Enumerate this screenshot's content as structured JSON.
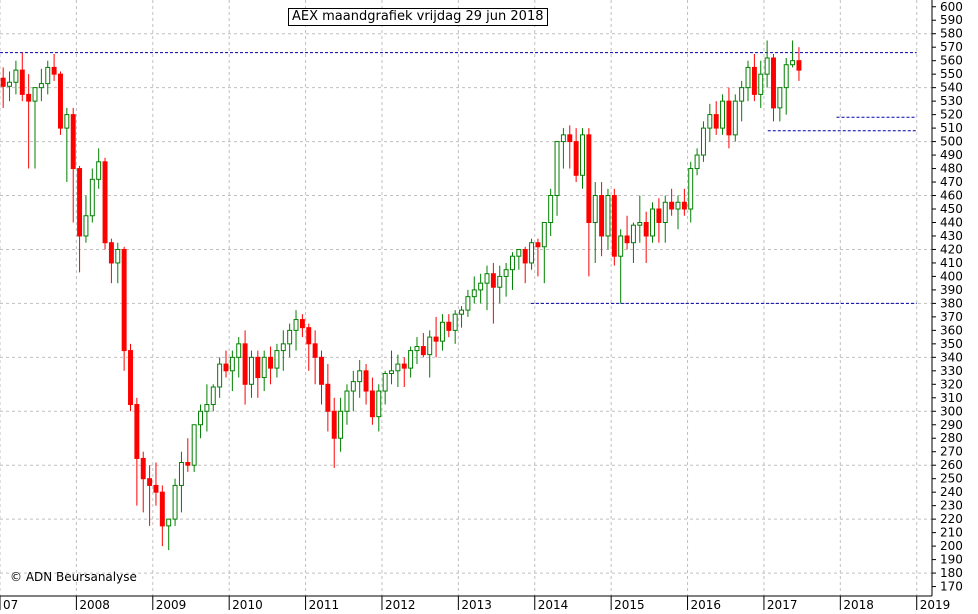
{
  "chart_data": {
    "type": "candlestick",
    "title": "AEX maandgrafiek vrijdag 29 jun 2018",
    "credit": "© ADN Beursanalyse",
    "ylim": [
      163,
      605
    ],
    "grid": true,
    "y_ticks": [
      170,
      180,
      190,
      200,
      210,
      220,
      230,
      240,
      250,
      260,
      270,
      280,
      290,
      300,
      310,
      320,
      330,
      340,
      350,
      360,
      370,
      380,
      390,
      400,
      410,
      420,
      430,
      440,
      450,
      460,
      470,
      480,
      490,
      500,
      510,
      520,
      530,
      540,
      550,
      560,
      570,
      580,
      590,
      600
    ],
    "x_labels": [
      {
        "label": "07",
        "x": 2007.0
      },
      {
        "label": "2008",
        "x": 2008.0
      },
      {
        "label": "2009",
        "x": 2009.0
      },
      {
        "label": "2010",
        "x": 2010.0
      },
      {
        "label": "2011",
        "x": 2011.0
      },
      {
        "label": "2012",
        "x": 2012.0
      },
      {
        "label": "2013",
        "x": 2013.0
      },
      {
        "label": "2014",
        "x": 2014.0
      },
      {
        "label": "2015",
        "x": 2015.0
      },
      {
        "label": "2016",
        "x": 2016.0
      },
      {
        "label": "2017",
        "x": 2017.0
      },
      {
        "label": "2018",
        "x": 2018.0
      },
      {
        "label": "2019",
        "x": 2019.0
      }
    ],
    "colors": {
      "up": "#008000",
      "down": "#ff0000",
      "reference": "#0000aa",
      "grid": "#c0c0c0"
    },
    "reference_lines": [
      {
        "y": 566,
        "x0": 2007.0,
        "x1": 2019.0
      },
      {
        "y": 518,
        "x0": 2017.95,
        "x1": 2019.0
      },
      {
        "y": 508,
        "x0": 2017.05,
        "x1": 2019.0
      },
      {
        "y": 380,
        "x0": 2013.95,
        "x1": 2019.0
      }
    ],
    "candles": [
      [
        547,
        555,
        525,
        541
      ],
      [
        541,
        552,
        530,
        544
      ],
      [
        544,
        560,
        535,
        553
      ],
      [
        553,
        566,
        530,
        535
      ],
      [
        535,
        550,
        480,
        530
      ],
      [
        530,
        540,
        480,
        540
      ],
      [
        540,
        554,
        530,
        543
      ],
      [
        543,
        560,
        535,
        555
      ],
      [
        555,
        565,
        545,
        550
      ],
      [
        550,
        552,
        505,
        510
      ],
      [
        510,
        525,
        470,
        520
      ],
      [
        520,
        525,
        440,
        480
      ],
      [
        480,
        482,
        403,
        430
      ],
      [
        430,
        460,
        425,
        445
      ],
      [
        445,
        480,
        440,
        472
      ],
      [
        472,
        495,
        465,
        485
      ],
      [
        485,
        488,
        420,
        425
      ],
      [
        425,
        428,
        395,
        410
      ],
      [
        410,
        425,
        395,
        420
      ],
      [
        420,
        422,
        330,
        345
      ],
      [
        345,
        350,
        300,
        305
      ],
      [
        305,
        310,
        230,
        265
      ],
      [
        265,
        270,
        225,
        250
      ],
      [
        250,
        260,
        215,
        245
      ],
      [
        245,
        262,
        230,
        240
      ],
      [
        240,
        245,
        200,
        215
      ],
      [
        215,
        220,
        197,
        220
      ],
      [
        220,
        250,
        215,
        245
      ],
      [
        245,
        270,
        225,
        262
      ],
      [
        262,
        280,
        255,
        260
      ],
      [
        260,
        290,
        255,
        290
      ],
      [
        290,
        305,
        280,
        300
      ],
      [
        300,
        320,
        285,
        305
      ],
      [
        305,
        320,
        300,
        318
      ],
      [
        318,
        340,
        310,
        335
      ],
      [
        335,
        345,
        325,
        330
      ],
      [
        330,
        345,
        315,
        340
      ],
      [
        340,
        355,
        325,
        350
      ],
      [
        350,
        360,
        305,
        320
      ],
      [
        320,
        345,
        310,
        340
      ],
      [
        340,
        345,
        310,
        325
      ],
      [
        325,
        345,
        315,
        340
      ],
      [
        340,
        348,
        320,
        332
      ],
      [
        332,
        350,
        325,
        345
      ],
      [
        345,
        360,
        330,
        350
      ],
      [
        350,
        365,
        340,
        360
      ],
      [
        360,
        375,
        345,
        368
      ],
      [
        368,
        372,
        355,
        362
      ],
      [
        362,
        365,
        330,
        350
      ],
      [
        350,
        360,
        320,
        340
      ],
      [
        340,
        345,
        305,
        320
      ],
      [
        320,
        335,
        285,
        300
      ],
      [
        300,
        310,
        258,
        280
      ],
      [
        280,
        310,
        270,
        300
      ],
      [
        300,
        320,
        290,
        315
      ],
      [
        315,
        330,
        300,
        322
      ],
      [
        322,
        338,
        310,
        330
      ],
      [
        330,
        335,
        305,
        315
      ],
      [
        315,
        325,
        290,
        296
      ],
      [
        296,
        320,
        285,
        315
      ],
      [
        315,
        330,
        305,
        328
      ],
      [
        328,
        345,
        320,
        330
      ],
      [
        330,
        342,
        318,
        335
      ],
      [
        335,
        340,
        318,
        332
      ],
      [
        332,
        348,
        325,
        345
      ],
      [
        345,
        355,
        335,
        348
      ],
      [
        348,
        358,
        340,
        342
      ],
      [
        342,
        360,
        325,
        355
      ],
      [
        355,
        370,
        340,
        352
      ],
      [
        352,
        372,
        345,
        366
      ],
      [
        366,
        372,
        355,
        360
      ],
      [
        360,
        375,
        350,
        372
      ],
      [
        372,
        378,
        362,
        375
      ],
      [
        375,
        390,
        370,
        385
      ],
      [
        385,
        400,
        380,
        390
      ],
      [
        390,
        402,
        380,
        395
      ],
      [
        395,
        408,
        375,
        402
      ],
      [
        402,
        410,
        365,
        392
      ],
      [
        392,
        408,
        380,
        400
      ],
      [
        400,
        410,
        385,
        405
      ],
      [
        405,
        418,
        390,
        415
      ],
      [
        415,
        420,
        405,
        420
      ],
      [
        420,
        422,
        395,
        410
      ],
      [
        410,
        428,
        405,
        425
      ],
      [
        425,
        428,
        400,
        422
      ],
      [
        422,
        440,
        395,
        440
      ],
      [
        440,
        465,
        430,
        460
      ],
      [
        460,
        500,
        445,
        500
      ],
      [
        500,
        510,
        480,
        505
      ],
      [
        505,
        512,
        480,
        500
      ],
      [
        500,
        510,
        470,
        475
      ],
      [
        475,
        510,
        465,
        505
      ],
      [
        505,
        510,
        400,
        440
      ],
      [
        440,
        470,
        410,
        460
      ],
      [
        460,
        470,
        415,
        430
      ],
      [
        430,
        465,
        420,
        460
      ],
      [
        460,
        465,
        408,
        415
      ],
      [
        415,
        435,
        380,
        430
      ],
      [
        430,
        445,
        420,
        425
      ],
      [
        425,
        440,
        410,
        438
      ],
      [
        438,
        460,
        425,
        440
      ],
      [
        440,
        448,
        410,
        430
      ],
      [
        430,
        455,
        425,
        450
      ],
      [
        450,
        458,
        425,
        440
      ],
      [
        440,
        460,
        425,
        455
      ],
      [
        455,
        465,
        445,
        450
      ],
      [
        450,
        460,
        435,
        455
      ],
      [
        455,
        465,
        445,
        450
      ],
      [
        450,
        485,
        440,
        480
      ],
      [
        480,
        495,
        475,
        490
      ],
      [
        490,
        515,
        485,
        510
      ],
      [
        510,
        528,
        500,
        520
      ],
      [
        520,
        530,
        505,
        510
      ],
      [
        510,
        535,
        505,
        530
      ],
      [
        530,
        540,
        495,
        505
      ],
      [
        505,
        535,
        500,
        530
      ],
      [
        530,
        545,
        515,
        540
      ],
      [
        540,
        560,
        530,
        555
      ],
      [
        555,
        565,
        530,
        535
      ],
      [
        535,
        560,
        525,
        550
      ],
      [
        550,
        575,
        540,
        562
      ],
      [
        562,
        565,
        515,
        525
      ],
      [
        525,
        540,
        515,
        540
      ],
      [
        540,
        562,
        520,
        557
      ],
      [
        557,
        575,
        555,
        560
      ],
      [
        560,
        570,
        545,
        553
      ]
    ]
  }
}
